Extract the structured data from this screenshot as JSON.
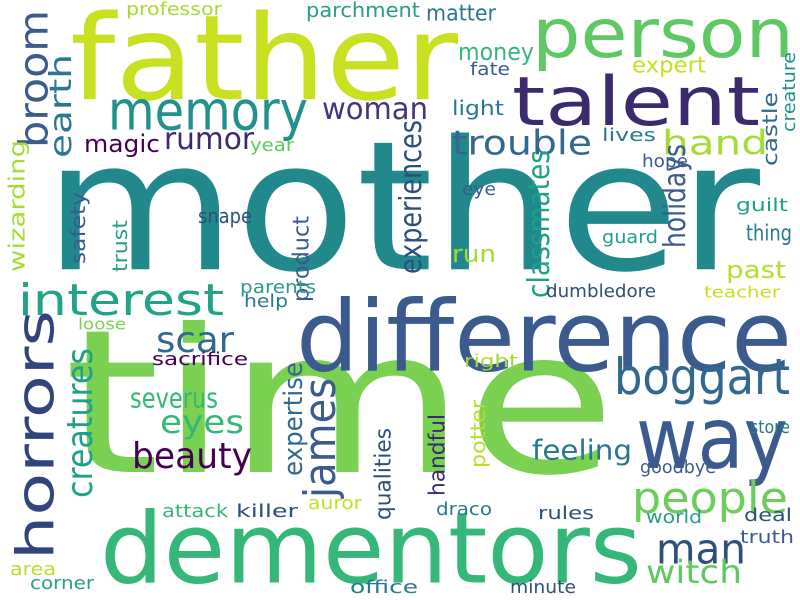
{
  "palette": {
    "dark_purple": "#440154",
    "indigo": "#3b2a6e",
    "blue": "#3b5b8e",
    "slate_blue": "#31688e",
    "teal": "#21888c",
    "green_teal": "#1fa187",
    "green": "#35b779",
    "light_green": "#7ad151",
    "yellow_green": "#b5de2b",
    "yellow": "#fde725"
  },
  "words": [
    {
      "text": "mother",
      "color": "#21888c"
    },
    {
      "text": "time",
      "color": "#7ad151"
    },
    {
      "text": "father",
      "color": "#c8e020"
    },
    {
      "text": "difference",
      "color": "#3b5b8e"
    },
    {
      "text": "dementors",
      "color": "#35b779"
    },
    {
      "text": "person",
      "color": "#5ec962"
    },
    {
      "text": "talent",
      "color": "#3b2a6e"
    },
    {
      "text": "memory",
      "color": "#21918c"
    },
    {
      "text": "interest",
      "color": "#20a386"
    },
    {
      "text": "way",
      "color": "#3b5b8e"
    },
    {
      "text": "horrors",
      "color": "#31447c"
    },
    {
      "text": "boggart",
      "color": "#31688e"
    },
    {
      "text": "people",
      "color": "#6ccd5a"
    },
    {
      "text": "broom",
      "color": "#3b5b8e"
    },
    {
      "text": "trouble",
      "color": "#31688e"
    },
    {
      "text": "man",
      "color": "#2c4f7c"
    },
    {
      "text": "woman",
      "color": "#46337e"
    },
    {
      "text": "hand",
      "color": "#a5db36"
    },
    {
      "text": "scar",
      "color": "#31688e"
    },
    {
      "text": "beauty",
      "color": "#440154"
    },
    {
      "text": "eyes",
      "color": "#35b779"
    },
    {
      "text": "james",
      "color": "#3b5b8e"
    },
    {
      "text": "creatures",
      "color": "#1fa187"
    },
    {
      "text": "witch",
      "color": "#5ec962"
    },
    {
      "text": "earth",
      "color": "#2a788e"
    },
    {
      "text": "rumor",
      "color": "#3b2a6e"
    },
    {
      "text": "severus",
      "color": "#35b779"
    },
    {
      "text": "feeling",
      "color": "#2a788e"
    },
    {
      "text": "experiences",
      "color": "#2c4f7c"
    },
    {
      "text": "classmates",
      "color": "#1fa187"
    },
    {
      "text": "holidays",
      "color": "#3b5b8e"
    },
    {
      "text": "expertise",
      "color": "#31688e"
    },
    {
      "text": "wizarding",
      "color": "#a5db36"
    },
    {
      "text": "magic",
      "color": "#440154"
    },
    {
      "text": "money",
      "color": "#35b779"
    },
    {
      "text": "matter",
      "color": "#2a788e"
    },
    {
      "text": "expert",
      "color": "#c8e020"
    },
    {
      "text": "thing",
      "color": "#2a788e"
    },
    {
      "text": "past",
      "color": "#b5de2b"
    },
    {
      "text": "run",
      "color": "#a5db36"
    },
    {
      "text": "product",
      "color": "#3b5b8e"
    },
    {
      "text": "qualities",
      "color": "#2c4f7c"
    },
    {
      "text": "handful",
      "color": "#3b2a6e"
    },
    {
      "text": "potter",
      "color": "#b5de2b"
    },
    {
      "text": "professor",
      "color": "#a5db36"
    },
    {
      "text": "parchment",
      "color": "#2a9d8a"
    },
    {
      "text": "fate",
      "color": "#3b5b8e"
    },
    {
      "text": "light",
      "color": "#2a788e"
    },
    {
      "text": "castle",
      "color": "#31688e"
    },
    {
      "text": "creature",
      "color": "#21918c"
    },
    {
      "text": "lives",
      "color": "#2a788e"
    },
    {
      "text": "year",
      "color": "#5ec962"
    },
    {
      "text": "hope",
      "color": "#3b5b8e"
    },
    {
      "text": "eye",
      "color": "#3b5b8e"
    },
    {
      "text": "guilt",
      "color": "#1fa187"
    },
    {
      "text": "snape",
      "color": "#2c4f7c"
    },
    {
      "text": "guard",
      "color": "#1fa187"
    },
    {
      "text": "safety",
      "color": "#3b5b8e"
    },
    {
      "text": "trust",
      "color": "#2a9d8a"
    },
    {
      "text": "dumbledore",
      "color": "#2c4f7c"
    },
    {
      "text": "parents",
      "color": "#2a9d8a"
    },
    {
      "text": "help",
      "color": "#2a788e"
    },
    {
      "text": "teacher",
      "color": "#c8e020"
    },
    {
      "text": "loose",
      "color": "#7ad151"
    },
    {
      "text": "sacrifice",
      "color": "#440154"
    },
    {
      "text": "right",
      "color": "#a5db36"
    },
    {
      "text": "store",
      "color": "#2a788e"
    },
    {
      "text": "goodbye",
      "color": "#3b5b8e"
    },
    {
      "text": "attack",
      "color": "#35b779"
    },
    {
      "text": "killer",
      "color": "#2c4f7c"
    },
    {
      "text": "auror",
      "color": "#c8e020"
    },
    {
      "text": "draco",
      "color": "#2a788e"
    },
    {
      "text": "rules",
      "color": "#2c4f7c"
    },
    {
      "text": "world",
      "color": "#2a9d8a"
    },
    {
      "text": "deal",
      "color": "#2c4f7c"
    },
    {
      "text": "truth",
      "color": "#3b5b8e"
    },
    {
      "text": "area",
      "color": "#b5de2b"
    },
    {
      "text": "corner",
      "color": "#2a9d8a"
    },
    {
      "text": "office",
      "color": "#2a788e"
    },
    {
      "text": "minute",
      "color": "#2c4f7c"
    }
  ]
}
